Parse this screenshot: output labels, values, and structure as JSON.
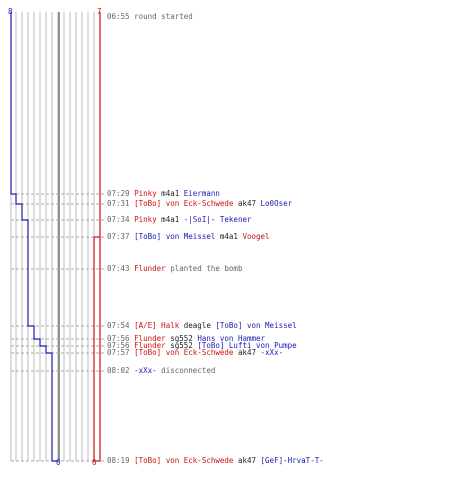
{
  "colors": {
    "ct": "#1a1ab4",
    "t": "#cc1111",
    "neutral": "#222222",
    "time": "#666666",
    "grid": "#bbbbbb",
    "dashed": "#aaaaaa",
    "center": "#777777"
  },
  "counts": {
    "ct_start": "8",
    "t_start": "7",
    "ct_end": "0",
    "t_end": "6"
  },
  "events": [
    {
      "time": "06:55",
      "parts": [
        {
          "text": "round started",
          "c": "time"
        }
      ]
    },
    {
      "time": "07:29",
      "parts": [
        {
          "text": "Pinky",
          "c": "t"
        },
        {
          "text": " m4a1 ",
          "c": "neutral"
        },
        {
          "text": "Eiermann",
          "c": "ct"
        }
      ]
    },
    {
      "time": "07:31",
      "parts": [
        {
          "text": "[ToBo] von Eck-Schwede",
          "c": "t"
        },
        {
          "text": " ak47 ",
          "c": "neutral"
        },
        {
          "text": "Lo0Oser",
          "c": "ct"
        }
      ]
    },
    {
      "time": "07:34",
      "parts": [
        {
          "text": "Pinky",
          "c": "t"
        },
        {
          "text": " m4a1 ",
          "c": "neutral"
        },
        {
          "text": "-|SoI|- Tekener",
          "c": "ct"
        }
      ]
    },
    {
      "time": "07:37",
      "parts": [
        {
          "text": "[ToBo] von Meissel",
          "c": "ct"
        },
        {
          "text": " m4a1 ",
          "c": "neutral"
        },
        {
          "text": "Voogel",
          "c": "t"
        }
      ]
    },
    {
      "time": "07:43",
      "parts": [
        {
          "text": "Flunder",
          "c": "t"
        },
        {
          "text": " planted the bomb",
          "c": "time"
        }
      ]
    },
    {
      "time": "07:54",
      "parts": [
        {
          "text": "[A/E] Halk",
          "c": "t"
        },
        {
          "text": " deagle ",
          "c": "neutral"
        },
        {
          "text": "[ToBo] von Meissel",
          "c": "ct"
        }
      ]
    },
    {
      "time": "07:56",
      "parts": [
        {
          "text": "Flunder",
          "c": "t"
        },
        {
          "text": " sg552 ",
          "c": "neutral"
        },
        {
          "text": "Hans von Hammer",
          "c": "ct"
        }
      ]
    },
    {
      "time": "07:56",
      "parts": [
        {
          "text": "Flunder",
          "c": "t"
        },
        {
          "text": " sg552 ",
          "c": "neutral"
        },
        {
          "text": "[ToBo] Lufti von Pumpe",
          "c": "ct"
        }
      ]
    },
    {
      "time": "07:57",
      "parts": [
        {
          "text": "[ToBo] von Eck-Schwede",
          "c": "t"
        },
        {
          "text": " ak47 ",
          "c": "neutral"
        },
        {
          "text": "-xXx-",
          "c": "ct"
        }
      ]
    },
    {
      "time": "08:02",
      "parts": [
        {
          "text": "-xXx-",
          "c": "ct"
        },
        {
          "text": " disconnected",
          "c": "time"
        }
      ]
    },
    {
      "time": "08:19",
      "parts": [
        {
          "text": "[ToBo] von Eck-Schwede",
          "c": "t"
        },
        {
          "text": " ak47 ",
          "c": "neutral"
        },
        {
          "text": "[GeF]-HrvaT-T-",
          "c": "ct"
        }
      ]
    }
  ]
}
